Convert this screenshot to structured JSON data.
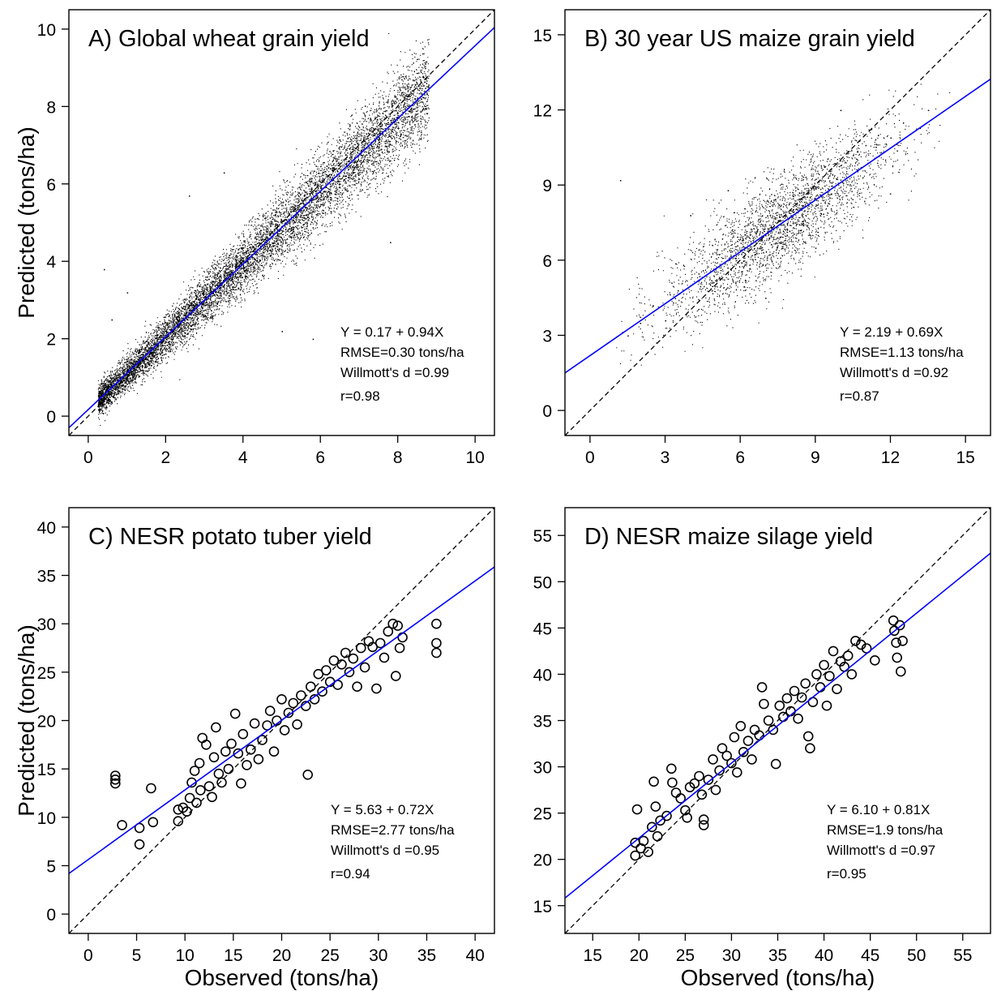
{
  "figure": {
    "xlabel": "Observed (tons/ha)",
    "ylabel": "Predicted (tons/ha)"
  },
  "chart_data": [
    {
      "panel": "A",
      "type": "scatter",
      "title": "A) Global wheat grain yield",
      "xlabel": "",
      "ylabel": "Predicted (tons/ha)",
      "xlim": [
        -0.5,
        10.5
      ],
      "ylim": [
        -0.5,
        10.5
      ],
      "xticks": [
        0,
        2,
        4,
        6,
        8,
        10
      ],
      "yticks": [
        0,
        2,
        4,
        6,
        8,
        10
      ],
      "marker": "dot",
      "point_count_visible": "dense cloud (thousands of points)",
      "points_sample": [
        [
          0.3,
          0.6
        ],
        [
          0.5,
          0.4
        ],
        [
          0.8,
          1.0
        ],
        [
          1.0,
          1.3
        ],
        [
          1.2,
          0.9
        ],
        [
          1.5,
          1.6
        ],
        [
          1.8,
          2.0
        ],
        [
          2.0,
          1.7
        ],
        [
          2.2,
          2.3
        ],
        [
          2.5,
          2.6
        ],
        [
          2.8,
          2.5
        ],
        [
          3.0,
          3.1
        ],
        [
          3.2,
          3.4
        ],
        [
          3.5,
          3.2
        ],
        [
          3.8,
          3.9
        ],
        [
          4.0,
          4.0
        ],
        [
          4.3,
          4.2
        ],
        [
          4.6,
          4.5
        ],
        [
          5.0,
          4.9
        ],
        [
          5.3,
          5.2
        ],
        [
          5.6,
          5.4
        ],
        [
          6.0,
          5.9
        ],
        [
          6.3,
          6.1
        ],
        [
          6.6,
          6.4
        ],
        [
          7.0,
          6.8
        ],
        [
          7.3,
          7.0
        ],
        [
          7.6,
          7.3
        ],
        [
          8.0,
          7.6
        ],
        [
          8.3,
          7.9
        ],
        [
          8.6,
          8.2
        ],
        [
          0.4,
          3.8
        ],
        [
          1.0,
          3.2
        ],
        [
          2.6,
          5.7
        ],
        [
          3.5,
          6.3
        ],
        [
          5.0,
          2.2
        ],
        [
          5.8,
          2.0
        ],
        [
          7.8,
          4.5
        ],
        [
          0.6,
          2.5
        ]
      ],
      "regression": {
        "intercept": 0.17,
        "slope": 0.94
      },
      "one_to_one": true,
      "annotations": [
        "Y = 0.17 + 0.94X",
        "RMSE=0.30 tons/ha",
        "Willmott's d =0.99",
        "r=0.98"
      ]
    },
    {
      "panel": "B",
      "type": "scatter",
      "title": "B) 30 year US maize grain yield",
      "xlabel": "",
      "ylabel": "",
      "xlim": [
        -1,
        16
      ],
      "ylim": [
        -1,
        16
      ],
      "xticks": [
        0,
        3,
        6,
        9,
        12,
        15
      ],
      "yticks": [
        0,
        3,
        6,
        9,
        12,
        15
      ],
      "marker": "dot",
      "point_count_visible": "dense cloud (thousands of points)",
      "points_sample": [
        [
          1.5,
          3.0
        ],
        [
          2.0,
          3.5
        ],
        [
          2.5,
          4.2
        ],
        [
          3.0,
          3.6
        ],
        [
          3.5,
          4.8
        ],
        [
          4.0,
          5.0
        ],
        [
          4.5,
          5.6
        ],
        [
          5.0,
          5.2
        ],
        [
          5.5,
          6.0
        ],
        [
          6.0,
          6.4
        ],
        [
          6.5,
          6.9
        ],
        [
          7.0,
          7.0
        ],
        [
          7.5,
          7.6
        ],
        [
          8.0,
          8.0
        ],
        [
          8.5,
          8.2
        ],
        [
          9.0,
          8.9
        ],
        [
          9.5,
          9.3
        ],
        [
          10.0,
          9.8
        ],
        [
          10.5,
          10.2
        ],
        [
          11.0,
          10.6
        ],
        [
          11.5,
          11.0
        ],
        [
          12.0,
          10.9
        ],
        [
          4.0,
          7.8
        ],
        [
          5.5,
          8.8
        ],
        [
          7.0,
          4.5
        ],
        [
          9.0,
          6.5
        ],
        [
          10.0,
          12.0
        ],
        [
          12.5,
          11.5
        ],
        [
          13.5,
          12.0
        ],
        [
          1.2,
          9.2
        ]
      ],
      "regression": {
        "intercept": 2.19,
        "slope": 0.69
      },
      "one_to_one": true,
      "annotations": [
        "Y = 2.19 + 0.69X",
        "RMSE=1.13 tons/ha",
        "Willmott's d =0.92",
        "r=0.87"
      ]
    },
    {
      "panel": "C",
      "type": "scatter",
      "title": "C) NESR potato tuber yield",
      "xlabel": "Observed (tons/ha)",
      "ylabel": "Predicted (tons/ha)",
      "xlim": [
        -2,
        42
      ],
      "ylim": [
        -2,
        42
      ],
      "xticks": [
        0,
        5,
        10,
        15,
        20,
        25,
        30,
        35,
        40
      ],
      "yticks": [
        0,
        5,
        10,
        15,
        20,
        25,
        30,
        35,
        40
      ],
      "marker": "open-circle",
      "points_sample": [
        [
          2.8,
          14.3
        ],
        [
          2.8,
          13.9
        ],
        [
          2.8,
          13.5
        ],
        [
          3.5,
          9.2
        ],
        [
          5.3,
          8.9
        ],
        [
          5.3,
          7.2
        ],
        [
          6.5,
          13.0
        ],
        [
          6.7,
          9.5
        ],
        [
          9.3,
          9.6
        ],
        [
          9.3,
          10.8
        ],
        [
          9.8,
          11.0
        ],
        [
          10.2,
          10.6
        ],
        [
          10.5,
          12.0
        ],
        [
          10.7,
          13.6
        ],
        [
          11.0,
          14.8
        ],
        [
          11.2,
          11.5
        ],
        [
          11.5,
          15.6
        ],
        [
          11.6,
          12.8
        ],
        [
          11.8,
          18.2
        ],
        [
          12.2,
          17.5
        ],
        [
          12.5,
          13.2
        ],
        [
          12.8,
          12.1
        ],
        [
          13.0,
          16.2
        ],
        [
          13.2,
          19.3
        ],
        [
          13.5,
          14.5
        ],
        [
          13.8,
          13.6
        ],
        [
          14.2,
          16.8
        ],
        [
          14.5,
          15.0
        ],
        [
          14.8,
          17.6
        ],
        [
          15.2,
          20.7
        ],
        [
          15.5,
          16.6
        ],
        [
          15.8,
          13.5
        ],
        [
          16.0,
          18.6
        ],
        [
          16.4,
          15.4
        ],
        [
          16.8,
          17.0
        ],
        [
          17.2,
          19.7
        ],
        [
          17.6,
          16.0
        ],
        [
          18.0,
          18.0
        ],
        [
          18.5,
          19.5
        ],
        [
          18.8,
          21.0
        ],
        [
          19.2,
          16.8
        ],
        [
          19.5,
          20.0
        ],
        [
          20.0,
          22.2
        ],
        [
          20.3,
          19.0
        ],
        [
          20.7,
          20.8
        ],
        [
          21.2,
          21.8
        ],
        [
          21.6,
          19.6
        ],
        [
          22.0,
          22.6
        ],
        [
          22.5,
          21.5
        ],
        [
          22.7,
          14.4
        ],
        [
          23.0,
          23.5
        ],
        [
          23.4,
          22.2
        ],
        [
          23.8,
          24.8
        ],
        [
          24.2,
          23.0
        ],
        [
          24.6,
          25.2
        ],
        [
          25.0,
          24.0
        ],
        [
          25.4,
          26.2
        ],
        [
          25.8,
          23.7
        ],
        [
          26.2,
          25.8
        ],
        [
          26.6,
          27.0
        ],
        [
          27.0,
          25.0
        ],
        [
          27.4,
          26.4
        ],
        [
          27.8,
          23.5
        ],
        [
          28.2,
          27.5
        ],
        [
          28.6,
          25.5
        ],
        [
          29.0,
          28.2
        ],
        [
          29.4,
          27.6
        ],
        [
          29.8,
          23.3
        ],
        [
          30.2,
          28.0
        ],
        [
          30.6,
          26.5
        ],
        [
          31.0,
          29.2
        ],
        [
          31.5,
          30.0
        ],
        [
          31.8,
          24.6
        ],
        [
          32.0,
          29.8
        ],
        [
          32.2,
          27.5
        ],
        [
          32.5,
          28.6
        ],
        [
          36.0,
          30.0
        ],
        [
          36.0,
          28.0
        ],
        [
          36.0,
          27.0
        ]
      ],
      "regression": {
        "intercept": 5.63,
        "slope": 0.72
      },
      "one_to_one": true,
      "annotations": [
        "Y = 5.63 + 0.72X",
        "RMSE=2.77 tons/ha",
        "Willmott's d =0.95",
        "r=0.94"
      ]
    },
    {
      "panel": "D",
      "type": "scatter",
      "title": "D) NESR maize silage yield",
      "xlabel": "Observed (tons/ha)",
      "ylabel": "",
      "xlim": [
        12,
        58
      ],
      "ylim": [
        12,
        58
      ],
      "xticks": [
        15,
        20,
        25,
        30,
        35,
        40,
        45,
        50,
        55
      ],
      "yticks": [
        15,
        20,
        25,
        30,
        35,
        40,
        45,
        50,
        55
      ],
      "marker": "open-circle",
      "points_sample": [
        [
          19.6,
          21.8
        ],
        [
          19.6,
          20.4
        ],
        [
          19.8,
          25.4
        ],
        [
          20.2,
          21.2
        ],
        [
          20.5,
          22.0
        ],
        [
          21.0,
          20.8
        ],
        [
          21.4,
          23.5
        ],
        [
          21.6,
          28.4
        ],
        [
          21.8,
          25.7
        ],
        [
          22.0,
          22.5
        ],
        [
          22.3,
          24.2
        ],
        [
          23.0,
          24.7
        ],
        [
          23.5,
          29.8
        ],
        [
          23.6,
          28.3
        ],
        [
          24.0,
          27.2
        ],
        [
          24.5,
          26.6
        ],
        [
          25.0,
          25.3
        ],
        [
          25.2,
          24.5
        ],
        [
          25.5,
          27.8
        ],
        [
          26.0,
          28.2
        ],
        [
          26.5,
          29.0
        ],
        [
          26.8,
          27.0
        ],
        [
          27.0,
          23.7
        ],
        [
          27.0,
          24.3
        ],
        [
          27.5,
          28.6
        ],
        [
          28.0,
          30.8
        ],
        [
          28.3,
          27.5
        ],
        [
          28.7,
          29.6
        ],
        [
          29.0,
          32.0
        ],
        [
          29.5,
          31.2
        ],
        [
          30.0,
          30.4
        ],
        [
          30.3,
          33.2
        ],
        [
          30.6,
          29.4
        ],
        [
          31.0,
          34.4
        ],
        [
          31.3,
          31.6
        ],
        [
          31.8,
          32.8
        ],
        [
          32.2,
          30.8
        ],
        [
          32.5,
          34.0
        ],
        [
          33.0,
          33.4
        ],
        [
          33.3,
          38.6
        ],
        [
          33.5,
          36.8
        ],
        [
          34.0,
          35.0
        ],
        [
          34.5,
          34.0
        ],
        [
          34.8,
          30.3
        ],
        [
          35.2,
          36.6
        ],
        [
          35.6,
          35.4
        ],
        [
          36.0,
          37.4
        ],
        [
          36.4,
          36.0
        ],
        [
          36.8,
          38.2
        ],
        [
          37.2,
          35.2
        ],
        [
          37.6,
          37.5
        ],
        [
          38.0,
          39.0
        ],
        [
          38.3,
          33.3
        ],
        [
          38.5,
          32.0
        ],
        [
          38.8,
          37.0
        ],
        [
          39.2,
          40.0
        ],
        [
          39.6,
          38.6
        ],
        [
          40.0,
          41.0
        ],
        [
          40.3,
          36.6
        ],
        [
          40.6,
          39.8
        ],
        [
          41.0,
          42.5
        ],
        [
          41.4,
          38.4
        ],
        [
          41.8,
          41.4
        ],
        [
          42.2,
          40.8
        ],
        [
          42.6,
          42.0
        ],
        [
          43.0,
          40.0
        ],
        [
          43.4,
          43.6
        ],
        [
          44.0,
          43.2
        ],
        [
          44.6,
          42.8
        ],
        [
          45.5,
          41.5
        ],
        [
          47.5,
          45.8
        ],
        [
          47.6,
          44.7
        ],
        [
          47.8,
          43.4
        ],
        [
          47.9,
          41.8
        ],
        [
          48.2,
          45.3
        ],
        [
          48.3,
          40.3
        ],
        [
          48.5,
          43.6
        ]
      ],
      "regression": {
        "intercept": 6.1,
        "slope": 0.81
      },
      "one_to_one": true,
      "annotations": [
        "Y = 6.10 + 0.81X",
        "RMSE=1.9 tons/ha",
        "Willmott's d =0.97",
        "r=0.95"
      ]
    }
  ],
  "colors": {
    "regression_line": "#0000ff",
    "one_to_one_line": "#000000",
    "points": "#000000",
    "axes": "#000000"
  }
}
